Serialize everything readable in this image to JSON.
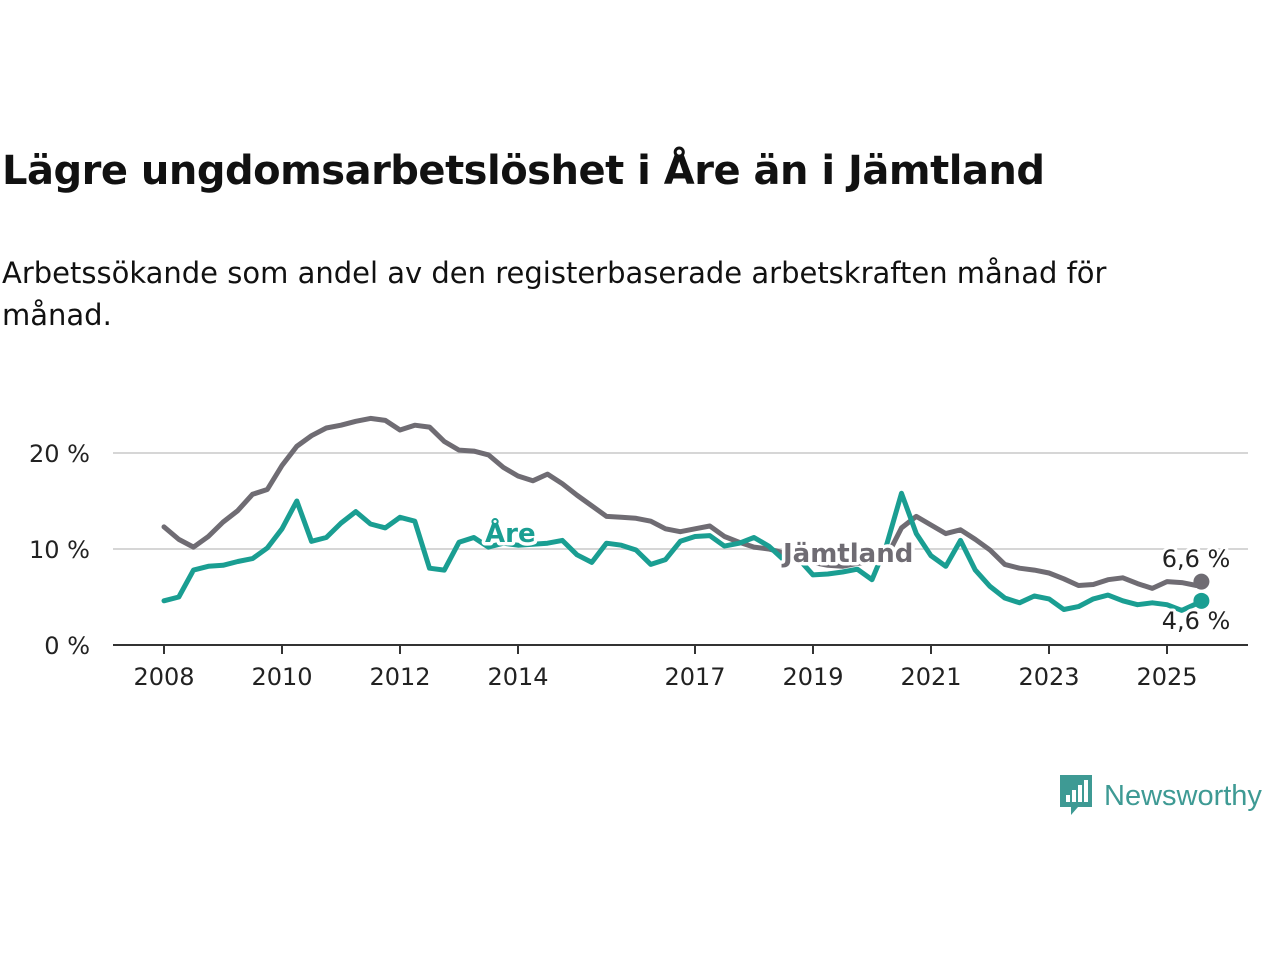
{
  "header": {
    "title": "Lägre ungdomsarbetslöshet i Åre än i Jämtland",
    "subtitle": "Arbetssökande som andel av den registerbaserade arbetskraften månad för månad."
  },
  "brand": {
    "name": "Newsworthy",
    "icon": "newsworthy-logo-icon",
    "color": "#3e9a94"
  },
  "chart_data": {
    "type": "line",
    "title": "Lägre ungdomsarbetslöshet i Åre än i Jämtland",
    "subtitle": "Arbetssökande som andel av den registerbaserade arbetskraften månad för månad.",
    "xlabel": "",
    "ylabel": "",
    "x_ticks": [
      "2008",
      "2010",
      "2012",
      "2014",
      "2017",
      "2019",
      "2021",
      "2023",
      "2025"
    ],
    "y_ticks": [
      "0 %",
      "10 %",
      "20 %"
    ],
    "ylim": [
      0,
      25
    ],
    "xlim": [
      "2007-11",
      "2025-11"
    ],
    "grid": "horizontal",
    "legend": "inline labels",
    "end_labels": [
      "6,6 %",
      "4,6 %"
    ],
    "series": [
      {
        "name": "Jämtland",
        "color": "#6f6c73",
        "points": [
          [
            "2008-01",
            12.3
          ],
          [
            "2008-04",
            11.0
          ],
          [
            "2008-07",
            10.2
          ],
          [
            "2008-10",
            11.3
          ],
          [
            "2009-01",
            12.8
          ],
          [
            "2009-04",
            14.0
          ],
          [
            "2009-07",
            15.7
          ],
          [
            "2009-10",
            16.2
          ],
          [
            "2010-01",
            18.7
          ],
          [
            "2010-04",
            20.7
          ],
          [
            "2010-07",
            21.8
          ],
          [
            "2010-10",
            22.6
          ],
          [
            "2011-01",
            22.9
          ],
          [
            "2011-04",
            23.3
          ],
          [
            "2011-07",
            23.6
          ],
          [
            "2011-10",
            23.4
          ],
          [
            "2012-01",
            22.4
          ],
          [
            "2012-04",
            22.9
          ],
          [
            "2012-07",
            22.7
          ],
          [
            "2012-10",
            21.2
          ],
          [
            "2013-01",
            20.3
          ],
          [
            "2013-04",
            20.2
          ],
          [
            "2013-07",
            19.8
          ],
          [
            "2013-10",
            18.5
          ],
          [
            "2014-01",
            17.6
          ],
          [
            "2014-04",
            17.1
          ],
          [
            "2014-07",
            17.8
          ],
          [
            "2014-10",
            16.8
          ],
          [
            "2015-01",
            15.6
          ],
          [
            "2015-04",
            14.5
          ],
          [
            "2015-07",
            13.4
          ],
          [
            "2015-10",
            13.3
          ],
          [
            "2016-01",
            13.2
          ],
          [
            "2016-04",
            12.9
          ],
          [
            "2016-07",
            12.1
          ],
          [
            "2016-10",
            11.8
          ],
          [
            "2017-01",
            12.1
          ],
          [
            "2017-04",
            12.4
          ],
          [
            "2017-07",
            11.3
          ],
          [
            "2017-10",
            10.7
          ],
          [
            "2018-01",
            10.2
          ],
          [
            "2018-04",
            10.0
          ],
          [
            "2018-07",
            9.6
          ],
          [
            "2018-10",
            9.1
          ],
          [
            "2019-01",
            8.6
          ],
          [
            "2019-04",
            8.3
          ],
          [
            "2019-07",
            8.2
          ],
          [
            "2019-10",
            8.5
          ],
          [
            "2020-01",
            8.7
          ],
          [
            "2020-04",
            9.2
          ],
          [
            "2020-07",
            12.2
          ],
          [
            "2020-10",
            13.4
          ],
          [
            "2021-01",
            12.5
          ],
          [
            "2021-04",
            11.6
          ],
          [
            "2021-07",
            12.0
          ],
          [
            "2021-10",
            11.0
          ],
          [
            "2022-01",
            9.9
          ],
          [
            "2022-04",
            8.4
          ],
          [
            "2022-07",
            8.0
          ],
          [
            "2022-10",
            7.8
          ],
          [
            "2023-01",
            7.5
          ],
          [
            "2023-04",
            6.9
          ],
          [
            "2023-07",
            6.2
          ],
          [
            "2023-10",
            6.3
          ],
          [
            "2024-01",
            6.8
          ],
          [
            "2024-04",
            7.0
          ],
          [
            "2024-07",
            6.4
          ],
          [
            "2024-10",
            5.9
          ],
          [
            "2025-01",
            6.6
          ],
          [
            "2025-04",
            6.5
          ],
          [
            "2025-07",
            6.2
          ],
          [
            "2025-08",
            6.6
          ]
        ]
      },
      {
        "name": "Åre",
        "color": "#1a9e92",
        "points": [
          [
            "2008-01",
            4.6
          ],
          [
            "2008-04",
            5.0
          ],
          [
            "2008-07",
            7.8
          ],
          [
            "2008-10",
            8.2
          ],
          [
            "2009-01",
            8.3
          ],
          [
            "2009-04",
            8.7
          ],
          [
            "2009-07",
            9.0
          ],
          [
            "2009-10",
            10.1
          ],
          [
            "2010-01",
            12.1
          ],
          [
            "2010-04",
            15.0
          ],
          [
            "2010-07",
            10.8
          ],
          [
            "2010-10",
            11.2
          ],
          [
            "2011-01",
            12.7
          ],
          [
            "2011-04",
            13.9
          ],
          [
            "2011-07",
            12.6
          ],
          [
            "2011-10",
            12.2
          ],
          [
            "2012-01",
            13.3
          ],
          [
            "2012-04",
            12.9
          ],
          [
            "2012-07",
            8.0
          ],
          [
            "2012-10",
            7.8
          ],
          [
            "2013-01",
            10.7
          ],
          [
            "2013-04",
            11.2
          ],
          [
            "2013-07",
            10.2
          ],
          [
            "2013-10",
            10.6
          ],
          [
            "2014-01",
            10.4
          ],
          [
            "2014-04",
            10.5
          ],
          [
            "2014-07",
            10.6
          ],
          [
            "2014-10",
            10.9
          ],
          [
            "2015-01",
            9.4
          ],
          [
            "2015-04",
            8.6
          ],
          [
            "2015-07",
            10.6
          ],
          [
            "2015-10",
            10.4
          ],
          [
            "2016-01",
            9.9
          ],
          [
            "2016-04",
            8.4
          ],
          [
            "2016-07",
            8.9
          ],
          [
            "2016-10",
            10.8
          ],
          [
            "2017-01",
            11.3
          ],
          [
            "2017-04",
            11.4
          ],
          [
            "2017-07",
            10.3
          ],
          [
            "2017-10",
            10.6
          ],
          [
            "2018-01",
            11.2
          ],
          [
            "2018-04",
            10.3
          ],
          [
            "2018-07",
            8.9
          ],
          [
            "2018-10",
            9.0
          ],
          [
            "2019-01",
            7.3
          ],
          [
            "2019-04",
            7.4
          ],
          [
            "2019-07",
            7.6
          ],
          [
            "2019-10",
            7.9
          ],
          [
            "2020-01",
            6.8
          ],
          [
            "2020-04",
            10.5
          ],
          [
            "2020-07",
            15.8
          ],
          [
            "2020-10",
            11.6
          ],
          [
            "2021-01",
            9.3
          ],
          [
            "2021-04",
            8.2
          ],
          [
            "2021-07",
            10.9
          ],
          [
            "2021-10",
            7.8
          ],
          [
            "2022-01",
            6.1
          ],
          [
            "2022-04",
            4.9
          ],
          [
            "2022-07",
            4.4
          ],
          [
            "2022-10",
            5.1
          ],
          [
            "2023-01",
            4.8
          ],
          [
            "2023-04",
            3.7
          ],
          [
            "2023-07",
            4.0
          ],
          [
            "2023-10",
            4.8
          ],
          [
            "2024-01",
            5.2
          ],
          [
            "2024-04",
            4.6
          ],
          [
            "2024-07",
            4.2
          ],
          [
            "2024-10",
            4.4
          ],
          [
            "2025-01",
            4.2
          ],
          [
            "2025-04",
            3.6
          ],
          [
            "2025-07",
            4.3
          ],
          [
            "2025-08",
            4.6
          ]
        ]
      }
    ]
  }
}
